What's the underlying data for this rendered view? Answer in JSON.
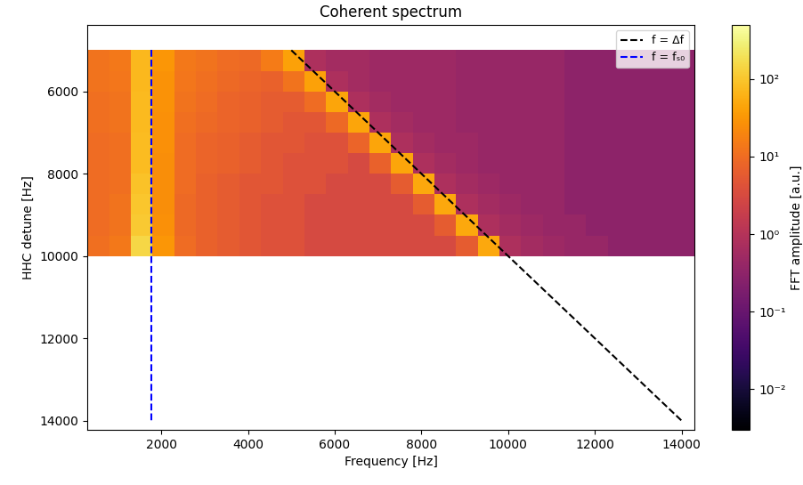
{
  "chart_data": {
    "type": "heatmap",
    "title": "Coherent spectrum",
    "x_label": "Frequency [Hz]",
    "y_label": "HHC detune [Hz]",
    "xlim": [
      300,
      14300
    ],
    "ylim": [
      14220,
      4380
    ],
    "xticks": [
      2000,
      4000,
      6000,
      8000,
      10000,
      12000,
      14000
    ],
    "yticks": [
      6000,
      8000,
      10000,
      12000,
      14000
    ],
    "legend": "upper right",
    "x_edges": [
      300,
      800,
      1300,
      1800,
      2300,
      2800,
      3300,
      3800,
      4300,
      4800,
      5300,
      5800,
      6300,
      6800,
      7300,
      7800,
      8300,
      8800,
      9300,
      9800,
      10300,
      10800,
      11300,
      11800,
      12300,
      12800,
      13300,
      13800,
      14300
    ],
    "y_edges": [
      5000,
      5500,
      6000,
      6500,
      7000,
      7500,
      8000,
      8500,
      9000,
      9500,
      10000
    ],
    "cells": [
      [
        12,
        14,
        70,
        30,
        14,
        12,
        10,
        9,
        15,
        40,
        0.8,
        0.6,
        0.6,
        0.5,
        0.5,
        0.5,
        0.5,
        0.4,
        0.4,
        0.4,
        0.4,
        0.4,
        0.3,
        0.3,
        0.3,
        0.3,
        0.3,
        0.3
      ],
      [
        12,
        13,
        70,
        28,
        13,
        11,
        9,
        8,
        7,
        12,
        40,
        0.8,
        0.6,
        0.5,
        0.5,
        0.5,
        0.5,
        0.4,
        0.4,
        0.4,
        0.4,
        0.4,
        0.3,
        0.3,
        0.3,
        0.3,
        0.3,
        0.3
      ],
      [
        11,
        12,
        75,
        28,
        12,
        10,
        8,
        7,
        6,
        6,
        10,
        45,
        0.8,
        0.6,
        0.5,
        0.5,
        0.5,
        0.4,
        0.4,
        0.4,
        0.4,
        0.4,
        0.3,
        0.3,
        0.3,
        0.3,
        0.3,
        0.3
      ],
      [
        11,
        12,
        75,
        27,
        11,
        9,
        8,
        7,
        6,
        5,
        5,
        9,
        45,
        0.8,
        0.6,
        0.5,
        0.5,
        0.4,
        0.4,
        0.4,
        0.4,
        0.4,
        0.3,
        0.3,
        0.3,
        0.3,
        0.3,
        0.3
      ],
      [
        10,
        11,
        80,
        26,
        10,
        8,
        7,
        6,
        5,
        5,
        4,
        4,
        8,
        45,
        0.8,
        0.6,
        0.5,
        0.5,
        0.4,
        0.4,
        0.4,
        0.4,
        0.3,
        0.3,
        0.3,
        0.3,
        0.3,
        0.3
      ],
      [
        10,
        11,
        80,
        25,
        10,
        8,
        7,
        6,
        5,
        4,
        4,
        4,
        3,
        7,
        45,
        0.8,
        0.6,
        0.5,
        0.4,
        0.4,
        0.4,
        0.4,
        0.3,
        0.3,
        0.3,
        0.3,
        0.3,
        0.3
      ],
      [
        10,
        11,
        90,
        25,
        10,
        7,
        6,
        5,
        5,
        4,
        4,
        3,
        3,
        3,
        6,
        50,
        0.8,
        0.6,
        0.5,
        0.4,
        0.4,
        0.4,
        0.3,
        0.3,
        0.3,
        0.3,
        0.3,
        0.3
      ],
      [
        10,
        12,
        100,
        25,
        9,
        7,
        6,
        5,
        4,
        4,
        3,
        3,
        3,
        3,
        3,
        6,
        50,
        0.8,
        0.6,
        0.5,
        0.4,
        0.4,
        0.3,
        0.3,
        0.3,
        0.3,
        0.3,
        0.3
      ],
      [
        10,
        12,
        110,
        26,
        9,
        7,
        6,
        5,
        4,
        4,
        3,
        3,
        3,
        3,
        3,
        3,
        6,
        50,
        0.8,
        0.6,
        0.5,
        0.4,
        0.4,
        0.3,
        0.3,
        0.3,
        0.3,
        0.3
      ],
      [
        11,
        14,
        150,
        30,
        10,
        7,
        6,
        5,
        4,
        4,
        3,
        3,
        3,
        3,
        3,
        3,
        3,
        6,
        50,
        0.8,
        0.6,
        0.5,
        0.4,
        0.4,
        0.3,
        0.3,
        0.3,
        0.3
      ]
    ],
    "colorbar": {
      "label": "FFT amplitude [a.u.]",
      "lim": [
        0.003,
        500
      ],
      "ticks": [
        {
          "value": 0.01,
          "label": "10⁻²"
        },
        {
          "value": 0.1,
          "label": "10⁻¹"
        },
        {
          "value": 1,
          "label": "10⁰"
        },
        {
          "value": 10,
          "label": "10¹"
        },
        {
          "value": 100,
          "label": "10²"
        }
      ]
    },
    "series": [
      {
        "name": "f = Δf",
        "type": "line",
        "color": "black",
        "line_style": "dashed",
        "x": [
          5000,
          14000
        ],
        "values": [
          5000,
          14000
        ]
      },
      {
        "name": "f = fₛ₀",
        "type": "line",
        "color": "blue",
        "line_style": "dashed",
        "x": [
          1780,
          1780
        ],
        "values": [
          5000,
          14000
        ]
      }
    ]
  }
}
